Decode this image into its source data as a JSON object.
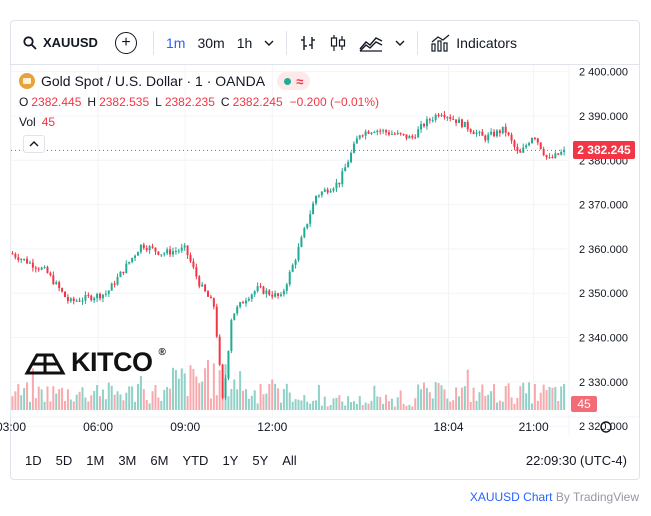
{
  "toolbar": {
    "symbol": "XAUUSD",
    "intervals": [
      "1m",
      "30m",
      "1h"
    ],
    "active_interval": "1m",
    "indicators_label": "Indicators"
  },
  "legend": {
    "title": "Gold Spot / U.S. Dollar · 1 · OANDA",
    "open_label": "O",
    "open": "2382.445",
    "high_label": "H",
    "high": "2382.535",
    "low_label": "L",
    "low": "2382.235",
    "close_label": "C",
    "close": "2382.245",
    "change": "−0.200 (−0.01%)",
    "vol_label": "Vol",
    "vol": "45",
    "pill_symbol": "≈"
  },
  "price_tag": "2 382.245",
  "vol_tag": "45",
  "logo_text": "KITCO",
  "logo_mark": "®",
  "ranges": [
    "1D",
    "5D",
    "1M",
    "3M",
    "6M",
    "YTD",
    "1Y",
    "5Y",
    "All"
  ],
  "clock": "22:09:30 (UTC-4)",
  "attribution": {
    "symbol": "XAUUSD Chart",
    "by": "By TradingView"
  },
  "colors": {
    "up": "#22ab94",
    "down": "#f23645",
    "up_vol": "#7cc9bd",
    "down_vol": "#f79a9f"
  },
  "chart_data": {
    "type": "candlestick",
    "title": "Gold Spot / U.S. Dollar · 1 · OANDA",
    "x_ticks": [
      "03:00",
      "06:00",
      "09:00",
      "12:00",
      "18:04",
      "21:00"
    ],
    "y_ticks": [
      "2 400.000",
      "2 390.000",
      "2 380.000",
      "2 370.000",
      "2 360.000",
      "2 350.000",
      "2 340.000",
      "2 330.000",
      "2 320.000"
    ],
    "y_tick_values": [
      2400,
      2390,
      2380,
      2370,
      2360,
      2350,
      2340,
      2330,
      2320
    ],
    "ylim": [
      2318,
      2401.5
    ],
    "last_price": 2382.245,
    "path_hours": [
      3,
      4.2,
      5,
      6.3,
      7.5,
      8.2,
      9,
      9.5,
      10,
      10.3,
      10.6,
      11.1,
      11.5,
      12.3,
      12.8,
      13.5,
      14.3,
      15,
      15.5,
      16.8,
      17.2,
      17.8,
      18.6,
      19.3,
      20,
      20.5,
      21,
      21.5,
      22.1
    ],
    "path_prices": [
      2359,
      2355,
      2348,
      2350,
      2361,
      2359,
      2360,
      2352,
      2347,
      2325,
      2345,
      2349,
      2351,
      2349,
      2358,
      2372,
      2375,
      2386,
      2387,
      2385,
      2388,
      2391,
      2388,
      2385,
      2387,
      2381,
      2386,
      2380,
      2382.2
    ],
    "x_range_hours": [
      3,
      22.15
    ],
    "volume_last": 45
  }
}
